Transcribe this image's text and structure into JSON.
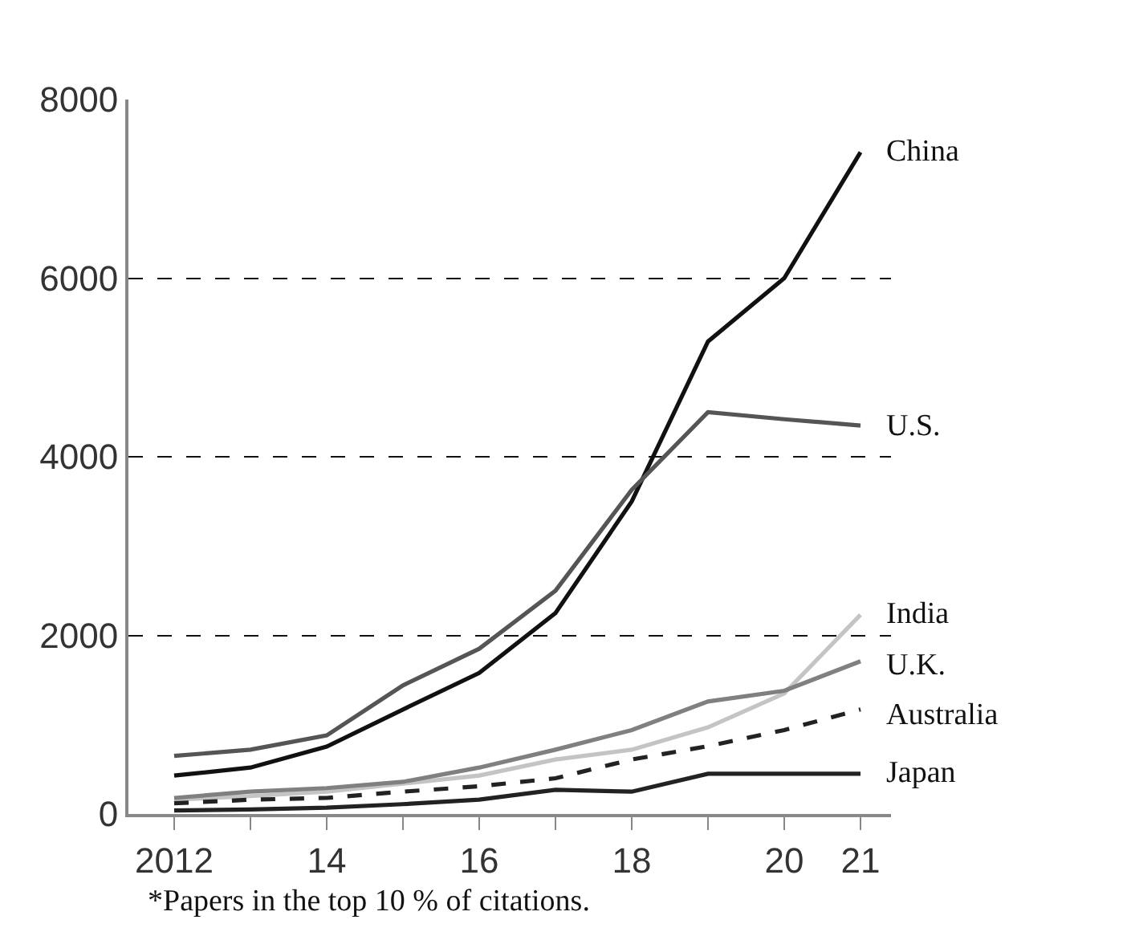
{
  "chart_data": {
    "type": "line",
    "x": [
      2012,
      2013,
      2014,
      2015,
      2016,
      2017,
      2018,
      2019,
      2020,
      2021
    ],
    "series": [
      {
        "name": "China",
        "color": "#111111",
        "values": [
          430,
          520,
          755,
          1170,
          1580,
          2250,
          3500,
          5290,
          6000,
          7410
        ]
      },
      {
        "name": "U.S.",
        "color": "#555555",
        "values": [
          650,
          720,
          880,
          1440,
          1850,
          2500,
          3630,
          4500,
          4420,
          4350
        ]
      },
      {
        "name": "India",
        "color": "#c4c4c4",
        "values": [
          160,
          200,
          250,
          340,
          430,
          610,
          720,
          970,
          1350,
          2230
        ]
      },
      {
        "name": "U.K.",
        "color": "#808080",
        "values": [
          180,
          250,
          290,
          360,
          520,
          720,
          940,
          1260,
          1380,
          1710
        ]
      },
      {
        "name": "Australia",
        "color": "#222222",
        "line_style": "dashed",
        "values": [
          120,
          160,
          180,
          250,
          310,
          400,
          610,
          760,
          940,
          1170
        ]
      },
      {
        "name": "Japan",
        "color": "#222222",
        "values": [
          40,
          50,
          70,
          110,
          160,
          270,
          250,
          450,
          450,
          450
        ]
      }
    ],
    "xlim": [
      2011.4,
      2021.4
    ],
    "xticks": [
      2012,
      {
        "value": 2013,
        "label": null
      },
      {
        "value": 2014,
        "label": "14"
      },
      {
        "value": 2015,
        "label": null
      },
      {
        "value": 2016,
        "label": "16"
      },
      {
        "value": 2017,
        "label": null
      },
      {
        "value": 2018,
        "label": "18"
      },
      {
        "value": 2019,
        "label": null
      },
      {
        "value": 2020,
        "label": "20"
      },
      {
        "value": 2021,
        "label": "21"
      }
    ],
    "ylim": [
      0,
      8000
    ],
    "yticks": [
      0,
      2000,
      4000,
      6000,
      8000
    ],
    "grid": "y",
    "legend": false,
    "marker": "none",
    "line_style": "solid",
    "annotations": [
      "*Papers in the top 10 % of citations."
    ]
  }
}
